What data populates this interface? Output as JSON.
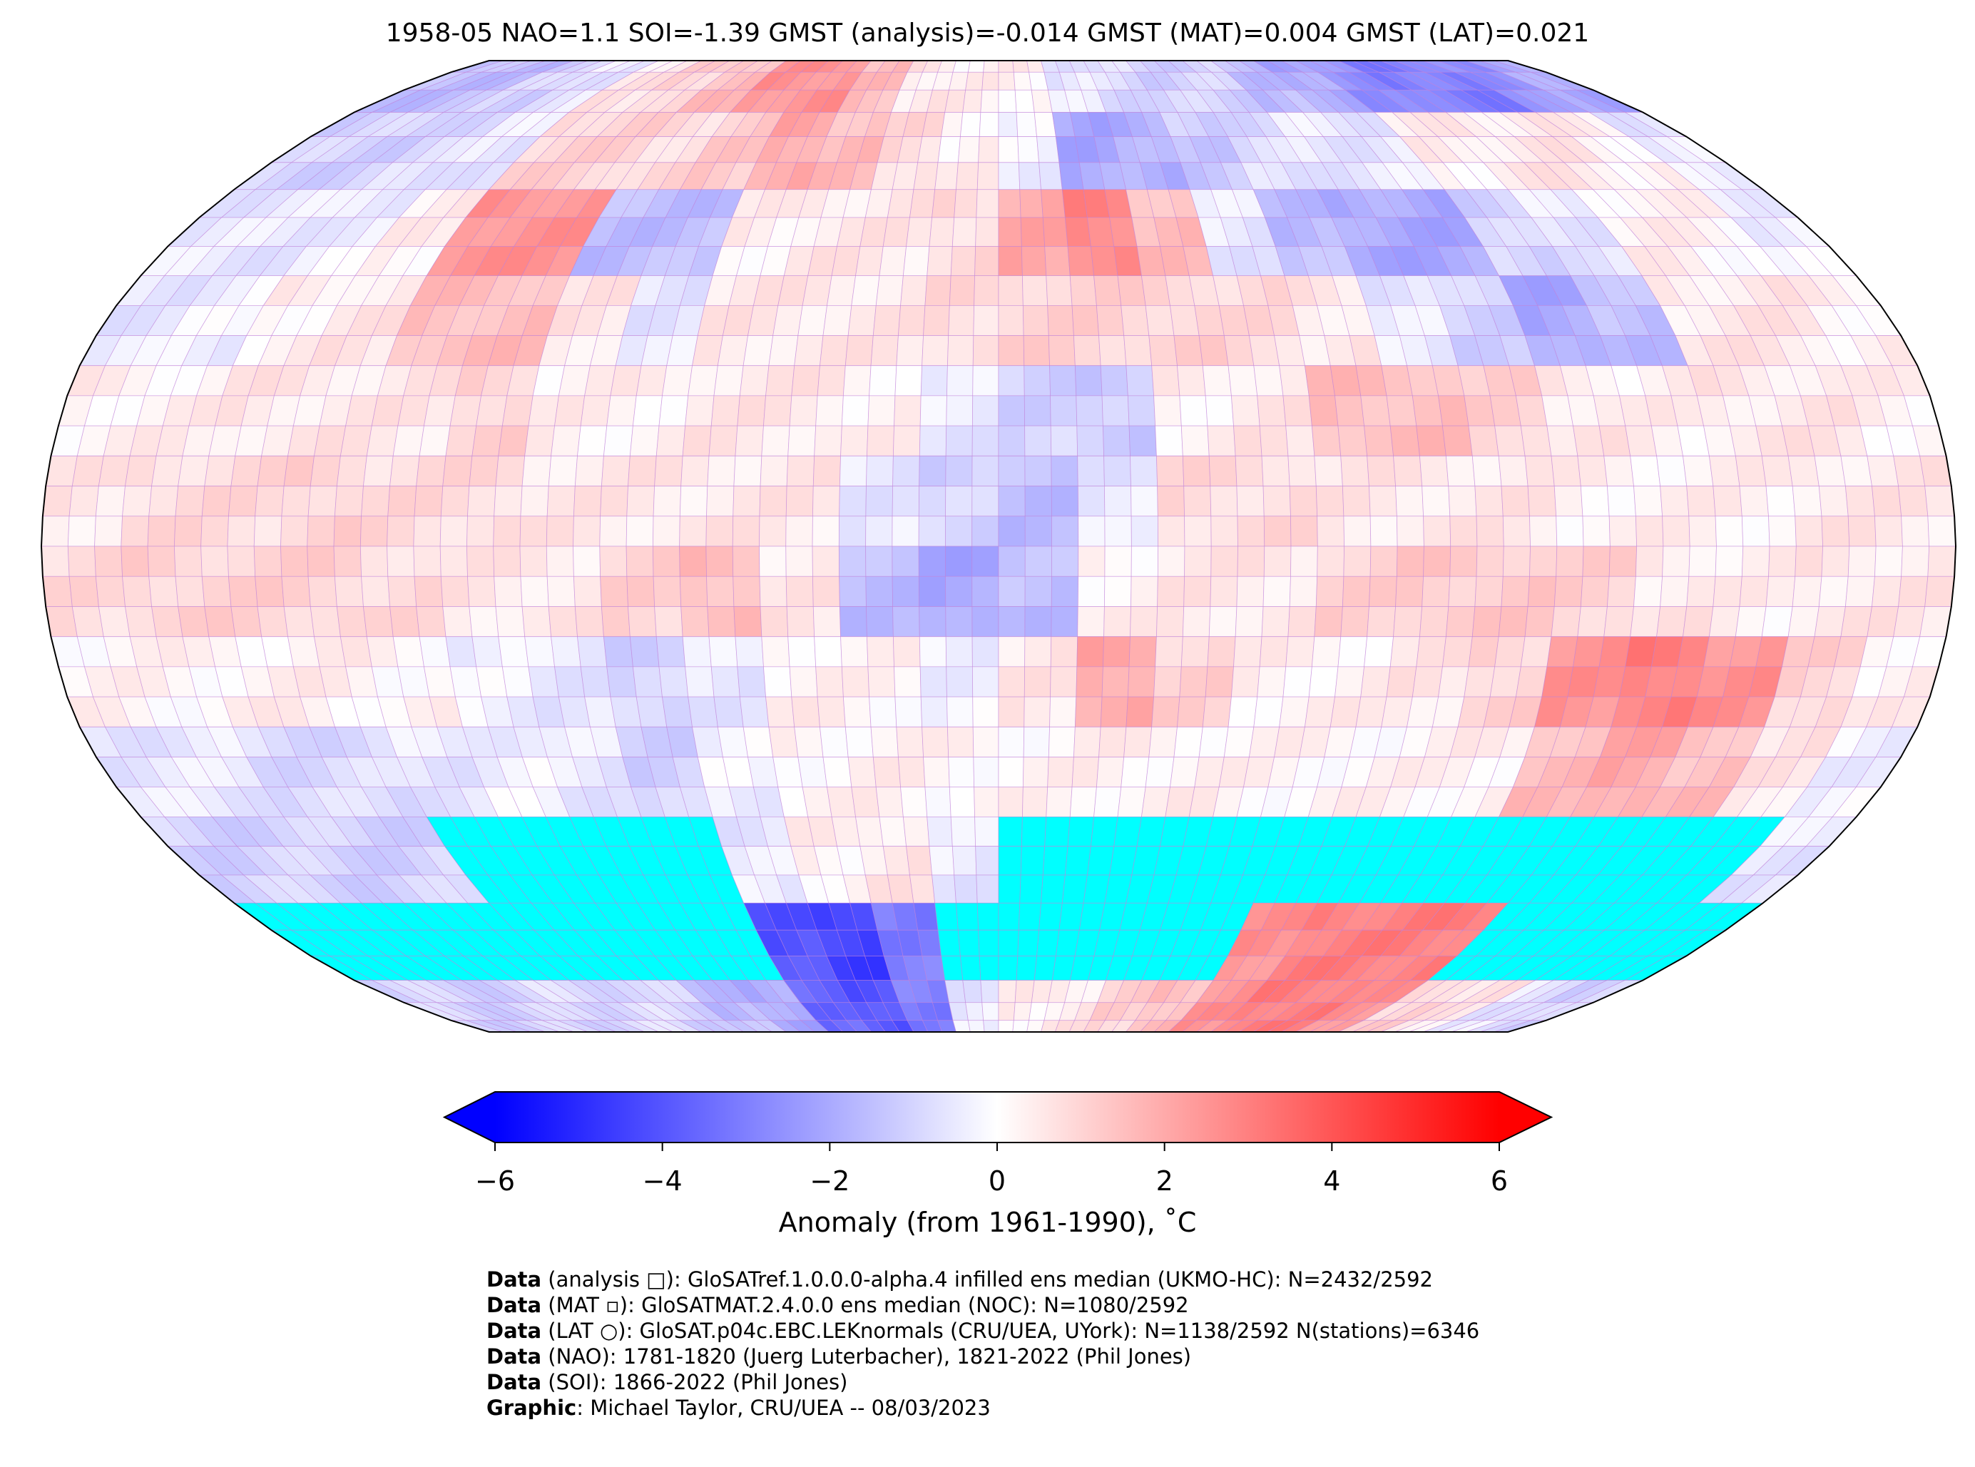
{
  "chart_data": {
    "type": "heatmap",
    "title": "1958-05 NAO=1.1 SOI=-1.39 GMST (analysis)=-0.014 GMST (MAT)=0.004 GMST (LAT)=0.021",
    "projection": "Robinson",
    "grid_resolution_deg": 5,
    "coarse_block_deg": 15,
    "lat_bands_north_to_south": [
      "90N-75N",
      "75N-60N",
      "60N-45N",
      "45N-30N",
      "30N-15N",
      "15N-0",
      "0-15S",
      "15S-30S",
      "30S-45S",
      "45S-60S",
      "60S-75S",
      "75S-90S"
    ],
    "lon_blocks_west_to_east": [
      "180W",
      "165W",
      "150W",
      "135W",
      "120W",
      "105W",
      "90W",
      "75W",
      "60W",
      "45W",
      "30W",
      "15W",
      "0",
      "15E",
      "30E",
      "45E",
      "60E",
      "75E",
      "90E",
      "105E",
      "120E",
      "135E",
      "150E",
      "165E"
    ],
    "anomaly_approx": [
      [
        -1.5,
        -1.5,
        -1,
        -0.5,
        0.5,
        1,
        1.5,
        2.5,
        2.5,
        1.5,
        0.5,
        0.3,
        0.3,
        -0.5,
        -0.8,
        -1,
        -1,
        -1.5,
        -2,
        -2.5,
        -3,
        -3,
        -2.5,
        -2
      ],
      [
        -1,
        -1,
        -0.8,
        -0.5,
        1,
        1,
        0.8,
        1.2,
        2,
        1.5,
        0.8,
        0.3,
        -0.3,
        -2,
        -1.8,
        -1.2,
        -0.8,
        -0.5,
        -0.5,
        0.3,
        0.5,
        0.5,
        0.3,
        -0.5
      ],
      [
        -0.5,
        -0.5,
        -0.3,
        0.3,
        2.5,
        2.5,
        -1.5,
        -1.5,
        0.3,
        0.5,
        0.5,
        0.8,
        2,
        2.8,
        1.5,
        -0.5,
        -1.5,
        -2,
        -2,
        -1,
        -0.5,
        0.3,
        0.2,
        -0.3
      ],
      [
        -0.5,
        -0.3,
        0.3,
        0.5,
        1.5,
        1.5,
        0.5,
        -0.5,
        0.5,
        0.5,
        0.5,
        0.8,
        1,
        1,
        1,
        0.8,
        0.5,
        -0.5,
        -1,
        -2,
        -1.5,
        0.5,
        0.5,
        0.3
      ],
      [
        0.3,
        0.3,
        0.5,
        0.5,
        0.5,
        1,
        0.3,
        0.3,
        0.5,
        0.5,
        0.3,
        -0.5,
        -1,
        -1.2,
        0.3,
        0.5,
        1.5,
        1.5,
        1,
        0.5,
        0.3,
        0.5,
        0.5,
        0.3
      ],
      [
        0.5,
        0.8,
        0.8,
        1,
        0.8,
        0.8,
        0.5,
        0.5,
        0.5,
        0.5,
        -0.5,
        -1,
        -1.5,
        -0.5,
        0.8,
        0.8,
        0.5,
        0.5,
        0.5,
        0.3,
        0.3,
        0.3,
        0.5,
        0.5
      ],
      [
        0.8,
        1,
        1,
        1,
        0.8,
        0.5,
        0.5,
        1,
        1.5,
        0.5,
        -1.5,
        -2,
        -1.5,
        0.3,
        0.5,
        0.5,
        1,
        1.2,
        1.2,
        1,
        0.5,
        0.3,
        0.5,
        0.5
      ],
      [
        0.2,
        0.2,
        0.3,
        0.3,
        0.2,
        -0.3,
        -0.5,
        -1,
        -0.5,
        0.3,
        0.2,
        -0.3,
        0.5,
        2,
        1,
        0.3,
        0.3,
        0.5,
        1,
        2.5,
        3,
        2.5,
        1,
        0.3
      ],
      [
        -0.5,
        -0.5,
        -0.8,
        -0.8,
        -0.5,
        -0.3,
        -0.5,
        -1,
        -0.3,
        0.2,
        0.3,
        0.2,
        0.2,
        0.3,
        0.3,
        0.2,
        0.2,
        0.2,
        0.3,
        1.5,
        2,
        1.5,
        0.5,
        -0.3
      ],
      [
        -1,
        -1,
        -1,
        -1,
        null,
        null,
        null,
        null,
        -0.5,
        0.3,
        0.5,
        -0.5,
        null,
        null,
        null,
        null,
        null,
        null,
        null,
        null,
        null,
        null,
        null,
        -0.5
      ],
      [
        null,
        null,
        null,
        null,
        null,
        null,
        null,
        null,
        -4,
        -4.5,
        -3,
        null,
        null,
        null,
        null,
        null,
        2.5,
        3,
        3,
        3,
        null,
        null,
        null,
        null
      ],
      [
        -1,
        -1,
        -1,
        -0.8,
        -0.8,
        -1,
        -1.5,
        -2,
        -3.5,
        -4,
        -3,
        -0.5,
        0.3,
        0.5,
        1,
        1.5,
        2.5,
        3,
        3,
        2.5,
        1,
        0.5,
        -0.5,
        -1
      ]
    ],
    "missing_color": "#00ffff",
    "colormap": "bwr",
    "colorbar": {
      "range": [
        -6,
        6
      ],
      "extend": "both",
      "ticks": [
        "−6",
        "−4",
        "−2",
        "0",
        "2",
        "4",
        "6"
      ],
      "tick_values": [
        -6,
        -4,
        -2,
        0,
        2,
        4,
        6
      ],
      "label": "Anomaly (from 1961-1990), ˚C"
    },
    "colors": {
      "low": "#0000ff",
      "mid": "#ffffff",
      "high": "#ff0000",
      "grid": "#c080d8"
    }
  },
  "footer": [
    {
      "bold": "Data",
      "text": " (analysis □): GloSATref.1.0.0.0-alpha.4 infilled ens median (UKMO-HC): N=2432/2592"
    },
    {
      "bold": "Data",
      "text": " (MAT ▫): GloSATMAT.2.4.0.0 ens median (NOC): N=1080/2592"
    },
    {
      "bold": "Data",
      "text": " (LAT ○): GloSAT.p04c.EBC.LEKnormals (CRU/UEA, UYork): N=1138/2592 N(stations)=6346"
    },
    {
      "bold": "Data",
      "text": " (NAO): 1781-1820 (Juerg Luterbacher), 1821-2022 (Phil Jones)"
    },
    {
      "bold": "Data",
      "text": " (SOI): 1866-2022 (Phil Jones)"
    },
    {
      "bold": "Graphic",
      "text": ": Michael Taylor, CRU/UEA -- 08/03/2023"
    }
  ]
}
